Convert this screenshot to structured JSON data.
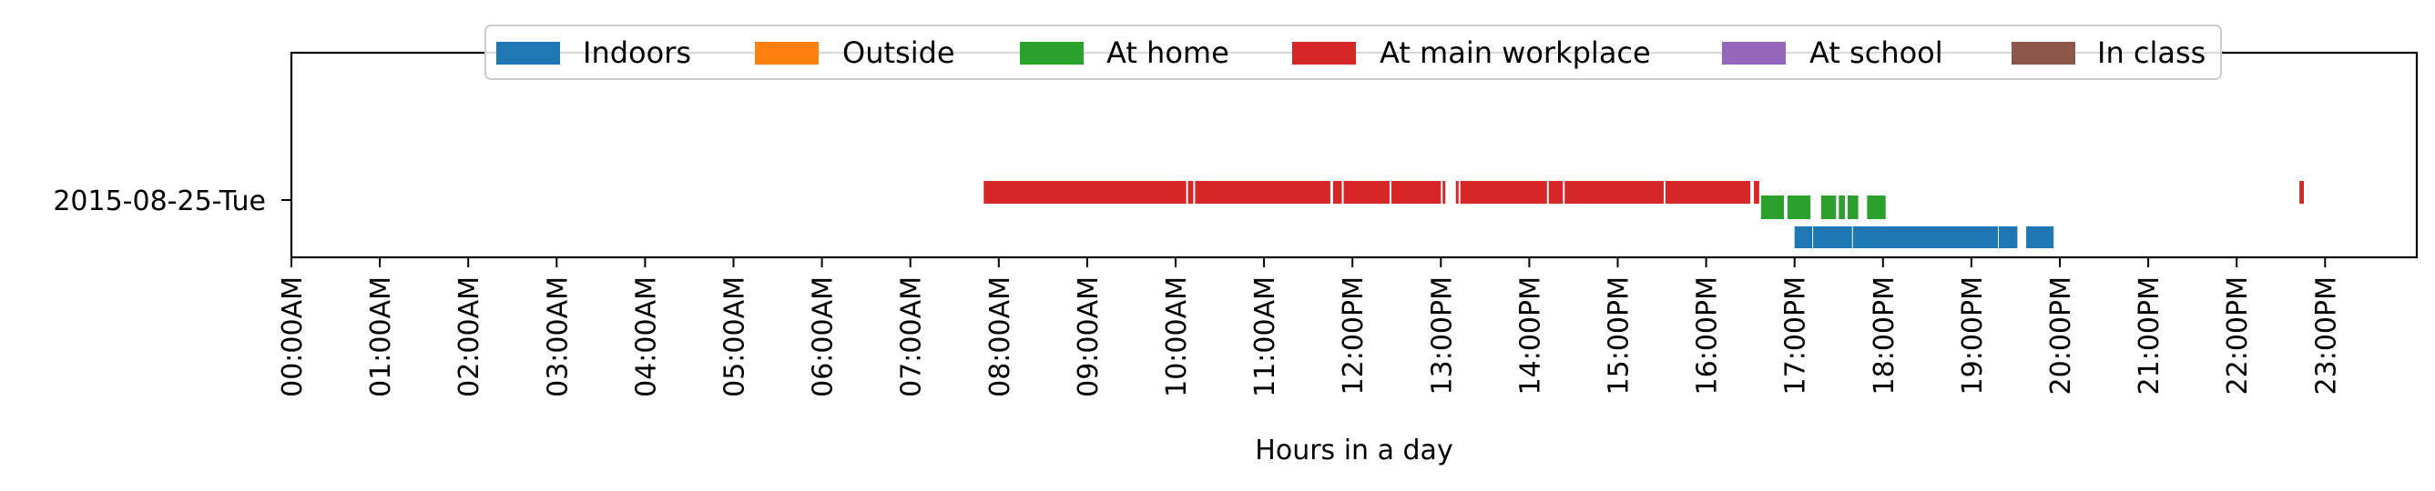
{
  "chart_data": {
    "type": "timeline",
    "xlabel": "Hours in a day",
    "xlim": [
      0,
      24
    ],
    "xticks": [
      {
        "value": 0,
        "label": "00:00AM"
      },
      {
        "value": 1,
        "label": "01:00AM"
      },
      {
        "value": 2,
        "label": "02:00AM"
      },
      {
        "value": 3,
        "label": "03:00AM"
      },
      {
        "value": 4,
        "label": "04:00AM"
      },
      {
        "value": 5,
        "label": "05:00AM"
      },
      {
        "value": 6,
        "label": "06:00AM"
      },
      {
        "value": 7,
        "label": "07:00AM"
      },
      {
        "value": 8,
        "label": "08:00AM"
      },
      {
        "value": 9,
        "label": "09:00AM"
      },
      {
        "value": 10,
        "label": "10:00AM"
      },
      {
        "value": 11,
        "label": "11:00AM"
      },
      {
        "value": 12,
        "label": "12:00PM"
      },
      {
        "value": 13,
        "label": "13:00PM"
      },
      {
        "value": 14,
        "label": "14:00PM"
      },
      {
        "value": 15,
        "label": "15:00PM"
      },
      {
        "value": 16,
        "label": "16:00PM"
      },
      {
        "value": 17,
        "label": "17:00PM"
      },
      {
        "value": 18,
        "label": "18:00PM"
      },
      {
        "value": 19,
        "label": "19:00PM"
      },
      {
        "value": 20,
        "label": "20:00PM"
      },
      {
        "value": 21,
        "label": "21:00PM"
      },
      {
        "value": 22,
        "label": "22:00PM"
      },
      {
        "value": 23,
        "label": "23:00PM"
      }
    ],
    "ytick": "2015-08-25-Tue",
    "legend_position": "top-center",
    "grid": false,
    "series": [
      {
        "name": "Indoors",
        "color": "#1f77b4",
        "segments": [
          [
            17.0,
            17.2
          ],
          [
            17.21,
            17.65
          ],
          [
            17.66,
            19.3
          ],
          [
            19.31,
            19.52
          ],
          [
            19.62,
            19.93
          ]
        ]
      },
      {
        "name": "Outside",
        "color": "#ff7f0e",
        "segments": []
      },
      {
        "name": "At home",
        "color": "#2ca02c",
        "segments": [
          [
            16.62,
            16.88
          ],
          [
            16.92,
            17.18
          ],
          [
            17.3,
            17.47
          ],
          [
            17.5,
            17.57
          ],
          [
            17.6,
            17.72
          ],
          [
            17.82,
            18.03
          ]
        ]
      },
      {
        "name": "At main workplace",
        "color": "#d62728",
        "segments": [
          [
            7.83,
            10.12
          ],
          [
            10.14,
            10.2
          ],
          [
            10.22,
            11.75
          ],
          [
            11.78,
            11.88
          ],
          [
            11.9,
            12.42
          ],
          [
            12.44,
            13.0
          ],
          [
            13.02,
            13.05
          ],
          [
            13.17,
            13.2
          ],
          [
            13.22,
            14.2
          ],
          [
            14.22,
            14.38
          ],
          [
            14.4,
            15.52
          ],
          [
            15.54,
            16.5
          ],
          [
            16.54,
            16.6
          ],
          [
            22.71,
            22.76
          ]
        ]
      },
      {
        "name": "At school",
        "color": "#9467bd",
        "segments": []
      },
      {
        "name": "In class",
        "color": "#8c564b",
        "segments": []
      }
    ]
  }
}
